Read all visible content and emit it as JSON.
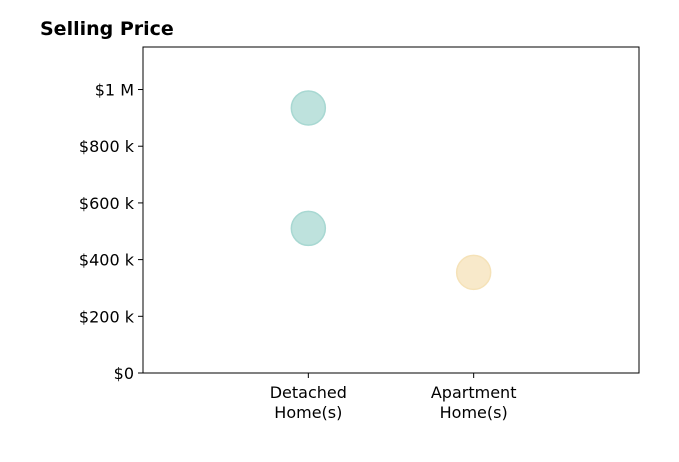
{
  "chart_data": {
    "type": "scatter",
    "title": "Selling Price",
    "xlabel": "",
    "ylabel": "",
    "categories": [
      "Detached\nHome(s)",
      "Apartment\nHome(s)"
    ],
    "x_categories_range": [
      -1,
      2
    ],
    "ylim": [
      0,
      1000000
    ],
    "ylim_top_extended": 1150000,
    "yticks": [
      0,
      200000,
      400000,
      600000,
      800000,
      1000000
    ],
    "ytick_labels": [
      "$0",
      "$200 k",
      "$400 k",
      "$600 k",
      "$800 k",
      "$1 M"
    ],
    "grid": false,
    "points": [
      {
        "category": "Detached\nHome(s)",
        "y": 935000,
        "color": "#a8d8d2"
      },
      {
        "category": "Detached\nHome(s)",
        "y": 510000,
        "color": "#a8d8d2"
      },
      {
        "category": "Apartment\nHome(s)",
        "y": 355000,
        "color": "#f5e2b8"
      }
    ]
  }
}
